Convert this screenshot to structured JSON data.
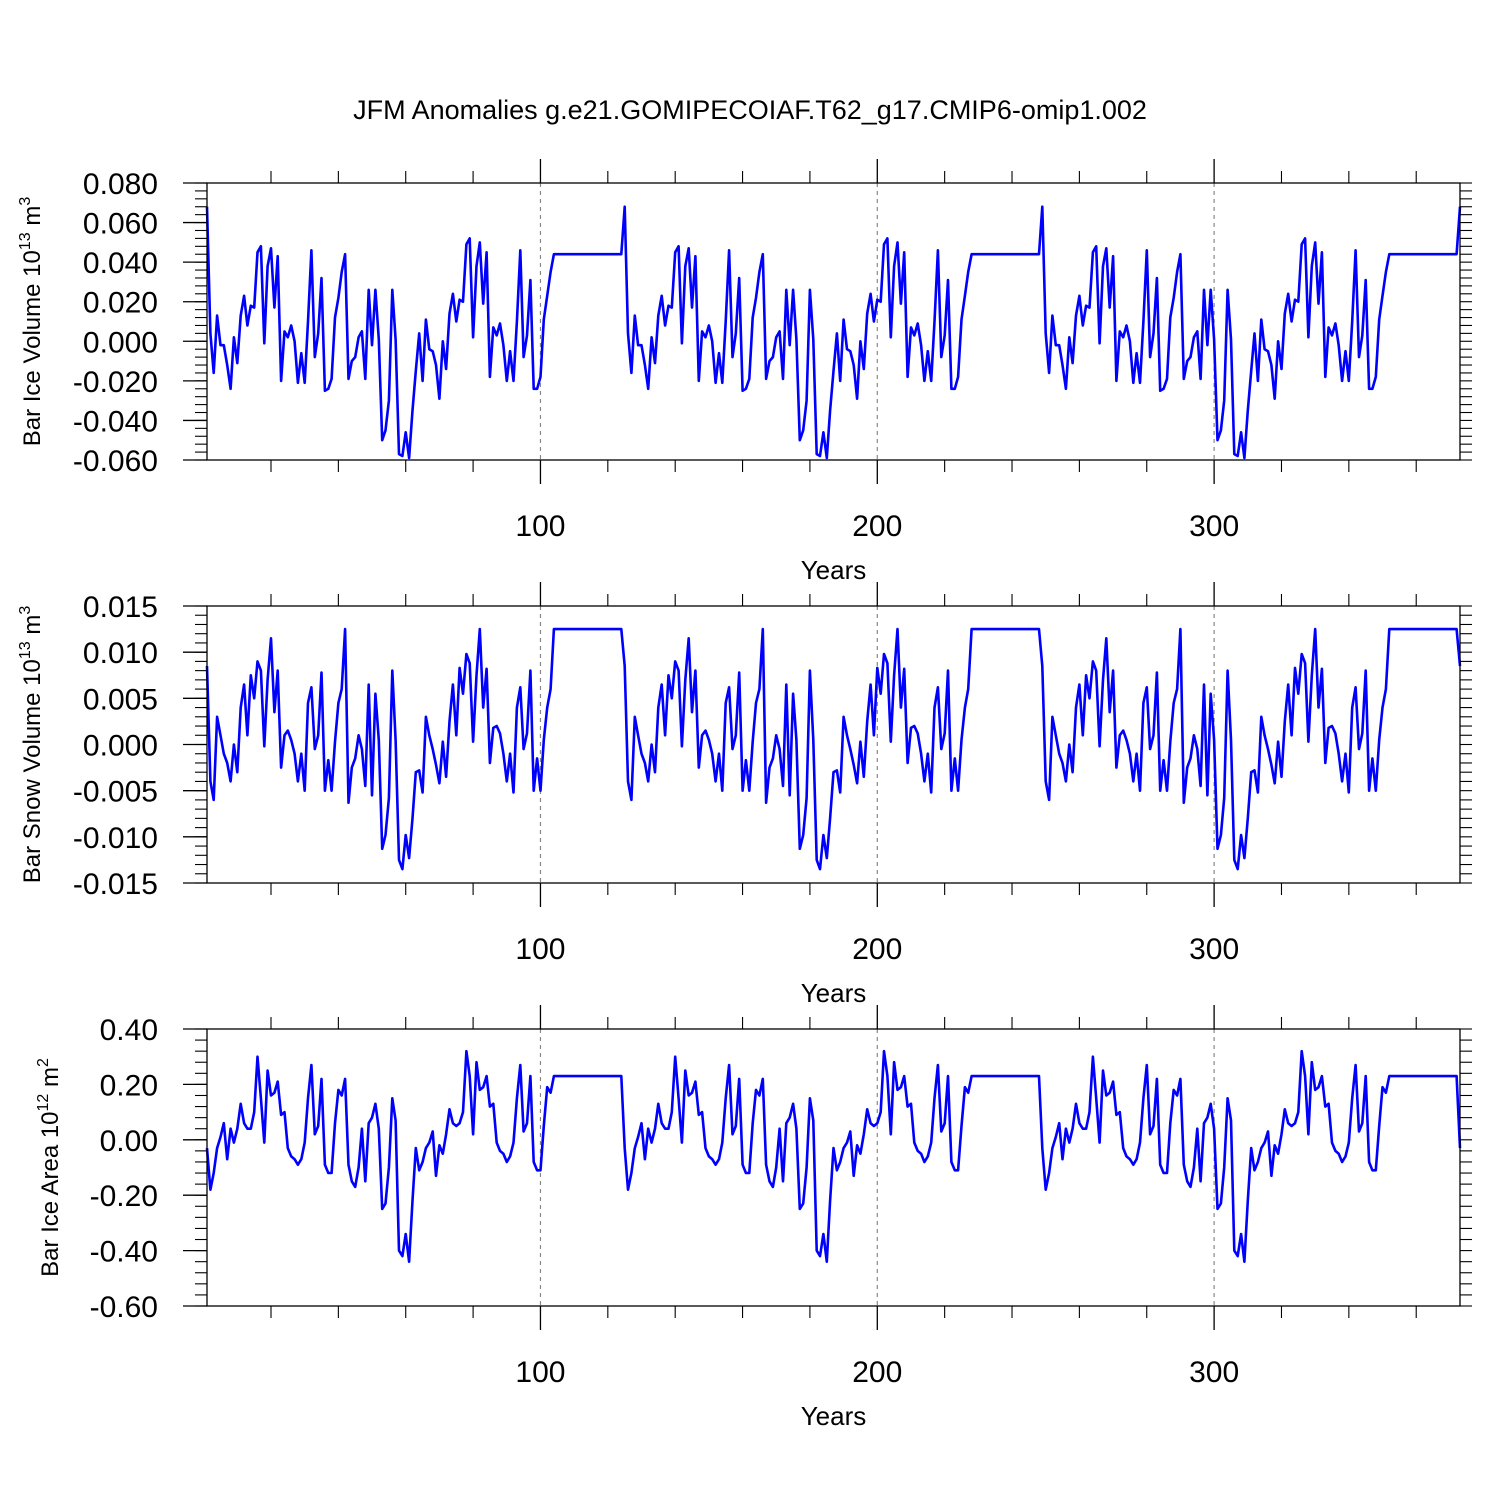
{
  "title": "JFM Anomalies g.e21.GOMIPECOIAF.T62_g17.CMIP6-omip1.002",
  "line_color": "#0000ff",
  "chart_data": [
    {
      "type": "line",
      "ylabel_main": "Bar Ice Volume 10",
      "ylabel_sup": "13",
      "ylabel_unit": " m",
      "ylabel_unit_sup": "3",
      "xlabel": "Years",
      "xlim": [
        1,
        373
      ],
      "ylim": [
        -0.06,
        0.08
      ],
      "yticks": [
        0.08,
        0.06,
        0.04,
        0.02,
        0.0,
        -0.02,
        -0.04,
        -0.06
      ],
      "ytick_labels": [
        "0.080",
        "0.060",
        "0.040",
        "0.020",
        "0.000",
        "-0.020",
        "-0.040",
        "-0.060"
      ],
      "xticks": [
        100,
        200,
        300
      ],
      "xtick_labels": [
        "100",
        "200",
        "300"
      ],
      "cycle": [
        0.068,
        0.004,
        -0.016,
        0.013,
        -0.002,
        -0.002,
        -0.012,
        -0.024,
        0.002,
        -0.011,
        0.013,
        0.023,
        0.008,
        0.018,
        0.017,
        0.045,
        0.048,
        -0.001,
        0.038,
        0.047,
        0.017,
        0.043,
        -0.02,
        0.005,
        0.002,
        0.008,
        0.0,
        -0.021,
        -0.006,
        -0.021,
        0.01,
        0.046,
        -0.008,
        0.004,
        0.032,
        -0.025,
        -0.024,
        -0.019,
        0.012,
        0.022,
        0.035,
        0.044,
        -0.019,
        -0.01,
        -0.008,
        0.002,
        0.005,
        -0.019,
        0.026,
        -0.002,
        0.026,
        0.001,
        -0.05,
        -0.045,
        -0.03,
        0.026,
        0.001,
        -0.057,
        -0.058,
        -0.046,
        -0.059,
        -0.035,
        -0.015,
        0.004,
        -0.02,
        0.011,
        -0.004,
        -0.005,
        -0.012,
        -0.029,
        0.0,
        -0.014,
        0.014,
        0.024,
        0.01,
        0.021,
        0.02,
        0.049,
        0.052,
        0.002,
        0.038,
        0.05,
        0.019,
        0.045,
        -0.018,
        0.007,
        0.003,
        0.009,
        -0.002,
        -0.02,
        -0.005,
        -0.02,
        0.01,
        0.046,
        -0.008,
        0.003,
        0.031,
        -0.024,
        -0.024,
        -0.018,
        0.011,
        0.023,
        0.035,
        0.044
      ],
      "period": 124
    },
    {
      "type": "line",
      "ylabel_main": "Bar Snow Volume 10",
      "ylabel_sup": "13",
      "ylabel_unit": " m",
      "ylabel_unit_sup": "3",
      "xlabel": "Years",
      "xlim": [
        1,
        373
      ],
      "ylim": [
        -0.015,
        0.015
      ],
      "yticks": [
        0.015,
        0.01,
        0.005,
        0.0,
        -0.005,
        -0.01,
        -0.015
      ],
      "ytick_labels": [
        "0.015",
        "0.010",
        "0.005",
        "0.000",
        "-0.005",
        "-0.010",
        "-0.015"
      ],
      "xticks": [
        100,
        200,
        300
      ],
      "xtick_labels": [
        "100",
        "200",
        "300"
      ],
      "cycle": [
        0.0085,
        -0.004,
        -0.006,
        0.003,
        0.001,
        -0.001,
        -0.002,
        -0.004,
        0.0,
        -0.003,
        0.004,
        0.0065,
        0.001,
        0.0075,
        0.005,
        0.009,
        0.008,
        -0.0002,
        0.007,
        0.0115,
        0.0035,
        0.008,
        -0.0025,
        0.001,
        0.0015,
        0.0005,
        -0.001,
        -0.004,
        -0.001,
        -0.005,
        0.0045,
        0.0062,
        -0.0005,
        0.001,
        0.0078,
        -0.005,
        -0.0017,
        -0.005,
        0.0003,
        0.0045,
        0.006,
        0.0125,
        -0.0063,
        -0.0025,
        -0.0015,
        0.001,
        -0.0005,
        -0.0045,
        0.0065,
        -0.0055,
        0.0055,
        0.0005,
        -0.0113,
        -0.0098,
        -0.0058,
        0.008,
        0.0005,
        -0.0125,
        -0.0135,
        -0.0098,
        -0.0123,
        -0.008,
        -0.003,
        -0.0028,
        -0.0052,
        0.003,
        0.001,
        -0.0005,
        -0.0022,
        -0.0042,
        0.0003,
        -0.0035,
        0.0025,
        0.0065,
        0.001,
        0.0083,
        0.0055,
        0.0098,
        0.0088,
        0.0003,
        0.0075,
        0.0125,
        0.004,
        0.0082,
        -0.002,
        0.0018,
        0.002,
        0.0012,
        -0.001,
        -0.004,
        -0.001,
        -0.0052,
        0.004,
        0.0062,
        -0.0005,
        0.0012,
        0.008,
        -0.005,
        -0.0015,
        -0.005,
        0.0005,
        0.004,
        0.006,
        0.0125
      ],
      "period": 124
    },
    {
      "type": "line",
      "ylabel_main": "Bar Ice Area 10",
      "ylabel_sup": "12",
      "ylabel_unit": " m",
      "ylabel_unit_sup": "2",
      "xlabel": "Years",
      "xlim": [
        1,
        373
      ],
      "ylim": [
        -0.6,
        0.4
      ],
      "yticks": [
        0.4,
        0.2,
        0.0,
        -0.2,
        -0.4,
        -0.6
      ],
      "ytick_labels": [
        "0.40",
        "0.20",
        "0.00",
        "-0.20",
        "-0.40",
        "-0.60"
      ],
      "xticks": [
        100,
        200,
        300
      ],
      "xtick_labels": [
        "100",
        "200",
        "300"
      ],
      "cycle": [
        -0.03,
        -0.18,
        -0.12,
        -0.03,
        0.01,
        0.06,
        -0.07,
        0.04,
        -0.01,
        0.04,
        0.13,
        0.06,
        0.04,
        0.04,
        0.1,
        0.3,
        0.15,
        -0.01,
        0.25,
        0.16,
        0.17,
        0.21,
        0.09,
        0.1,
        -0.03,
        -0.06,
        -0.07,
        -0.09,
        -0.07,
        -0.01,
        0.15,
        0.27,
        0.02,
        0.05,
        0.22,
        -0.09,
        -0.12,
        -0.12,
        0.06,
        0.18,
        0.16,
        0.22,
        -0.09,
        -0.15,
        -0.17,
        -0.1,
        0.04,
        -0.15,
        0.06,
        0.08,
        0.13,
        0.04,
        -0.25,
        -0.23,
        -0.1,
        0.15,
        0.07,
        -0.4,
        -0.42,
        -0.34,
        -0.44,
        -0.22,
        -0.03,
        -0.11,
        -0.08,
        -0.03,
        -0.01,
        0.03,
        -0.13,
        -0.02,
        -0.05,
        0.02,
        0.11,
        0.06,
        0.05,
        0.06,
        0.1,
        0.32,
        0.23,
        0.02,
        0.28,
        0.18,
        0.19,
        0.23,
        0.12,
        0.13,
        -0.01,
        -0.04,
        -0.05,
        -0.08,
        -0.06,
        -0.01,
        0.15,
        0.27,
        0.03,
        0.06,
        0.23,
        -0.08,
        -0.11,
        -0.11,
        0.05,
        0.19,
        0.17,
        0.23
      ],
      "period": 124
    }
  ]
}
